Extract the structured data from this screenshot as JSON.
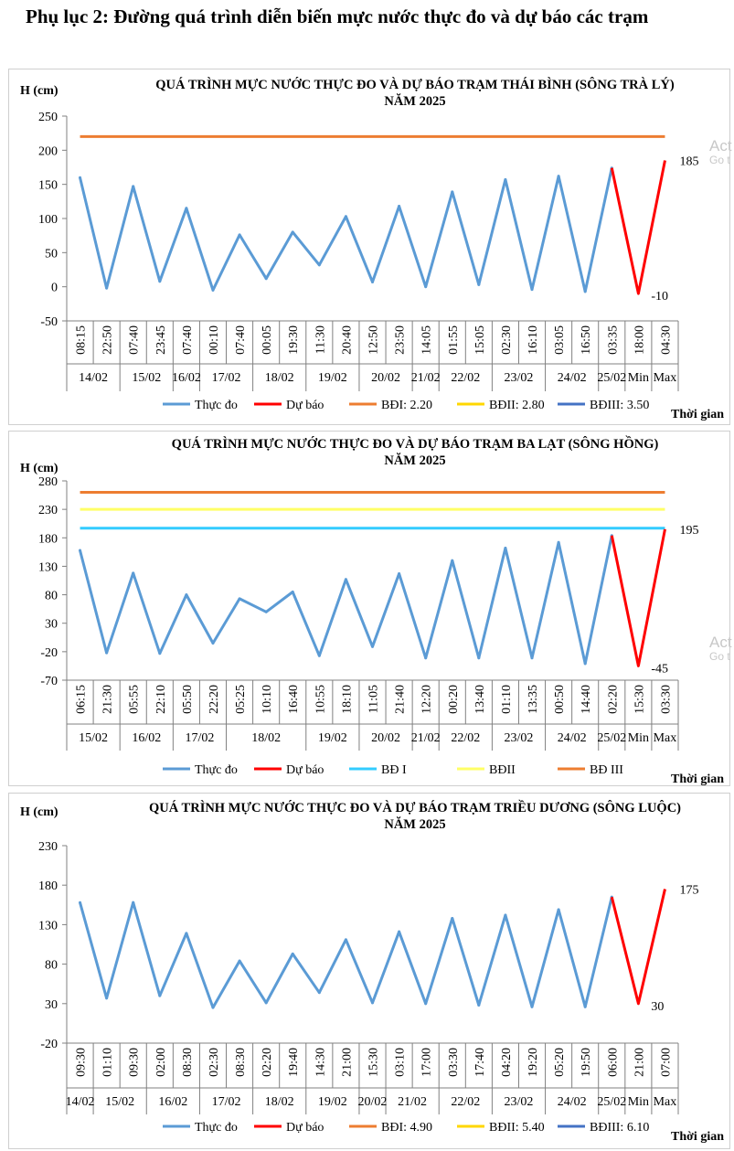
{
  "page_title": "Phụ lục 2: Đường quá trình diễn biến mực nước thực đo và dự báo các trạm",
  "watermark": {
    "line1": "Act",
    "line2": "Go t"
  },
  "chart_data": [
    {
      "type": "line",
      "title_line1": "QUÁ TRÌNH MỰC NƯỚC THỰC ĐO VÀ DỰ BÁO TRẠM THÁI BÌNH (SÔNG TRÀ LÝ)",
      "title_line2": "NĂM 2025",
      "ylabel": "H (cm)",
      "xlabel": "Thời gian",
      "ylim": [
        -50,
        250
      ],
      "yticks": [
        "-50",
        "0",
        "50",
        "100",
        "150",
        "200",
        "250"
      ],
      "categories": [
        "08:15",
        "22:50",
        "07:40",
        "23:45",
        "07:40",
        "00:10",
        "07:40",
        "00:05",
        "19:30",
        "11:30",
        "20:40",
        "12:50",
        "23:50",
        "14:05",
        "01:55",
        "15:05",
        "02:30",
        "16:10",
        "03:05",
        "16:50",
        "03:35",
        "18:00",
        "04:30"
      ],
      "dates": [
        {
          "label": "14/02",
          "span": 2
        },
        {
          "label": "15/02",
          "span": 2
        },
        {
          "label": "16/02",
          "span": 1
        },
        {
          "label": "17/02",
          "span": 2
        },
        {
          "label": "18/02",
          "span": 2
        },
        {
          "label": "19/02",
          "span": 2
        },
        {
          "label": "20/02",
          "span": 2
        },
        {
          "label": "21/02",
          "span": 1
        },
        {
          "label": "22/02",
          "span": 2
        },
        {
          "label": "23/02",
          "span": 2
        },
        {
          "label": "24/02",
          "span": 2
        },
        {
          "label": "25/02",
          "span": 1
        },
        {
          "label": "Min",
          "span": 1
        },
        {
          "label": "Max",
          "span": 1
        }
      ],
      "observed": [
        160,
        -2,
        147,
        8,
        115,
        -5,
        76,
        12,
        80,
        32,
        103,
        7,
        118,
        0,
        139,
        3,
        157,
        -4,
        162,
        -7,
        174
      ],
      "forecast_start_index": 20,
      "forecast": [
        174,
        -10,
        185
      ],
      "forecast_labels": [
        "-10",
        "185"
      ],
      "thresholds": [
        {
          "name": "BĐI: 2.20",
          "value": 220,
          "color": "#ed7d31",
          "shown": true
        },
        {
          "name": "BĐII: 2.80",
          "value": 280,
          "color": "#ffd700",
          "shown": false
        },
        {
          "name": "BĐIII: 3.50",
          "value": 350,
          "color": "#4472c4",
          "shown": false
        }
      ],
      "legend": [
        {
          "label": "Thực đo",
          "color": "#5b9bd5"
        },
        {
          "label": "Dự báo",
          "color": "#ff0000"
        },
        {
          "label": "BĐI: 2.20",
          "color": "#ed7d31"
        },
        {
          "label": "BĐII: 2.80",
          "color": "#ffd700"
        },
        {
          "label": "BĐIII: 3.50",
          "color": "#4472c4"
        }
      ]
    },
    {
      "type": "line",
      "title_line1": "QUÁ TRÌNH MỰC NƯỚC THỰC ĐO VÀ DỰ BÁO TRẠM BA LẠT (SÔNG HỒNG)",
      "title_line2": "NĂM 2025",
      "ylabel": "H (cm)",
      "xlabel": "Thời gian",
      "ylim": [
        -70,
        280
      ],
      "yticks": [
        "-70",
        "-20",
        "30",
        "80",
        "130",
        "180",
        "230",
        "280"
      ],
      "categories": [
        "06:15",
        "21:30",
        "05:55",
        "22:10",
        "05:50",
        "22:20",
        "05:25",
        "10:10",
        "16:40",
        "10:55",
        "18:10",
        "11:05",
        "21:40",
        "12:20",
        "00:20",
        "13:40",
        "01:10",
        "13:35",
        "00:50",
        "14:40",
        "02:20",
        "15:30",
        "03:30"
      ],
      "dates": [
        {
          "label": "15/02",
          "span": 2
        },
        {
          "label": "16/02",
          "span": 2
        },
        {
          "label": "17/02",
          "span": 2
        },
        {
          "label": "18/02",
          "span": 3
        },
        {
          "label": "19/02",
          "span": 2
        },
        {
          "label": "20/02",
          "span": 2
        },
        {
          "label": "21/02",
          "span": 1
        },
        {
          "label": "22/02",
          "span": 2
        },
        {
          "label": "23/02",
          "span": 2
        },
        {
          "label": "24/02",
          "span": 2
        },
        {
          "label": "25/02",
          "span": 1
        },
        {
          "label": "Min",
          "span": 1
        },
        {
          "label": "Max",
          "span": 1
        }
      ],
      "observed": [
        158,
        -22,
        118,
        -23,
        80,
        -5,
        73,
        50,
        85,
        -27,
        107,
        -11,
        117,
        -31,
        140,
        -31,
        162,
        -31,
        172,
        -41,
        184
      ],
      "forecast_start_index": 20,
      "forecast": [
        184,
        -45,
        195
      ],
      "forecast_labels": [
        "-45",
        "195"
      ],
      "thresholds": [
        {
          "name": "BĐ I",
          "value": 197,
          "color": "#33ccff",
          "shown": true
        },
        {
          "name": "BĐII",
          "value": 230,
          "color": "#ffff66",
          "shown": true
        },
        {
          "name": "BĐ III",
          "value": 260,
          "color": "#ed7d31",
          "shown": true
        }
      ],
      "legend": [
        {
          "label": "Thực đo",
          "color": "#5b9bd5"
        },
        {
          "label": "Dự báo",
          "color": "#ff0000"
        },
        {
          "label": "BĐ I",
          "color": "#33ccff"
        },
        {
          "label": "BĐII",
          "color": "#ffff66"
        },
        {
          "label": "BĐ III",
          "color": "#ed7d31"
        }
      ]
    },
    {
      "type": "line",
      "title_line1": "QUÁ TRÌNH MỰC NƯỚC THỰC ĐO VÀ DỰ BÁO TRẠM TRIỀU DƯƠNG (SÔNG LUỘC)",
      "title_line2": "NĂM 2025",
      "ylabel": "H (cm)",
      "xlabel": "Thời gian",
      "ylim": [
        -20,
        230
      ],
      "yticks": [
        "-20",
        "30",
        "80",
        "130",
        "180",
        "230"
      ],
      "categories": [
        "09:30",
        "01:10",
        "09:30",
        "02:00",
        "08:30",
        "02:30",
        "08:30",
        "02:20",
        "19:40",
        "14:30",
        "21:00",
        "15:30",
        "03:10",
        "17:00",
        "03:30",
        "17:40",
        "04:20",
        "19:20",
        "05:20",
        "19:50",
        "06:00",
        "21:00",
        "07:00"
      ],
      "dates": [
        {
          "label": "14/02",
          "span": 1
        },
        {
          "label": "15/02",
          "span": 2
        },
        {
          "label": "16/02",
          "span": 2
        },
        {
          "label": "17/02",
          "span": 2
        },
        {
          "label": "18/02",
          "span": 2
        },
        {
          "label": "19/02",
          "span": 2
        },
        {
          "label": "20/02",
          "span": 1
        },
        {
          "label": "21/02",
          "span": 2
        },
        {
          "label": "22/02",
          "span": 2
        },
        {
          "label": "23/02",
          "span": 2
        },
        {
          "label": "24/02",
          "span": 2
        },
        {
          "label": "25/02",
          "span": 1
        },
        {
          "label": "Min",
          "span": 1
        },
        {
          "label": "Max",
          "span": 1
        }
      ],
      "observed": [
        158,
        37,
        158,
        40,
        119,
        25,
        84,
        31,
        93,
        44,
        111,
        31,
        121,
        30,
        138,
        28,
        142,
        26,
        149,
        26,
        165
      ],
      "forecast_start_index": 20,
      "forecast": [
        165,
        30,
        175
      ],
      "forecast_labels": [
        "30",
        "175"
      ],
      "thresholds": [
        {
          "name": "BĐI: 4.90",
          "value": 490,
          "color": "#ed7d31",
          "shown": false
        },
        {
          "name": "BĐII: 5.40",
          "value": 540,
          "color": "#ffd700",
          "shown": false
        },
        {
          "name": "BĐIII: 6.10",
          "value": 610,
          "color": "#4472c4",
          "shown": false
        }
      ],
      "legend": [
        {
          "label": "Thực đo",
          "color": "#5b9bd5"
        },
        {
          "label": "Dự báo",
          "color": "#ff0000"
        },
        {
          "label": "BĐI: 4.90",
          "color": "#ed7d31"
        },
        {
          "label": "BĐII: 5.40",
          "color": "#ffd700"
        },
        {
          "label": "BĐIII: 6.10",
          "color": "#4472c4"
        }
      ]
    }
  ]
}
